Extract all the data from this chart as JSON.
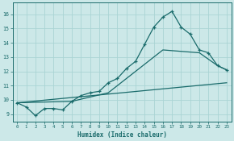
{
  "xlabel": "Humidex (Indice chaleur)",
  "bg_color": "#cce8e8",
  "line_color": "#1a6b6b",
  "grid_color": "#aad4d4",
  "xlim": [
    -0.5,
    23.5
  ],
  "ylim": [
    8.5,
    16.8
  ],
  "xticks": [
    0,
    1,
    2,
    3,
    4,
    5,
    6,
    7,
    8,
    9,
    10,
    11,
    12,
    13,
    14,
    15,
    16,
    17,
    18,
    19,
    20,
    21,
    22,
    23
  ],
  "yticks": [
    9,
    10,
    11,
    12,
    13,
    14,
    15,
    16
  ],
  "line1_x": [
    0,
    1,
    2,
    3,
    4,
    5,
    6,
    7,
    8,
    9,
    10,
    11,
    12,
    13,
    14,
    15,
    16,
    17,
    18,
    19,
    20,
    21,
    22,
    23
  ],
  "line1_y": [
    9.8,
    9.5,
    8.9,
    9.4,
    9.4,
    9.3,
    9.9,
    10.3,
    10.5,
    10.6,
    11.2,
    11.5,
    12.2,
    12.7,
    13.9,
    15.1,
    15.8,
    16.2,
    15.1,
    14.6,
    13.5,
    13.3,
    12.4,
    12.1
  ],
  "line2_x": [
    0,
    23
  ],
  "line2_y": [
    9.8,
    11.2
  ],
  "line3_x": [
    0,
    6,
    10,
    16,
    20,
    22,
    23
  ],
  "line3_y": [
    9.8,
    9.9,
    10.5,
    13.5,
    13.3,
    12.4,
    12.1
  ]
}
